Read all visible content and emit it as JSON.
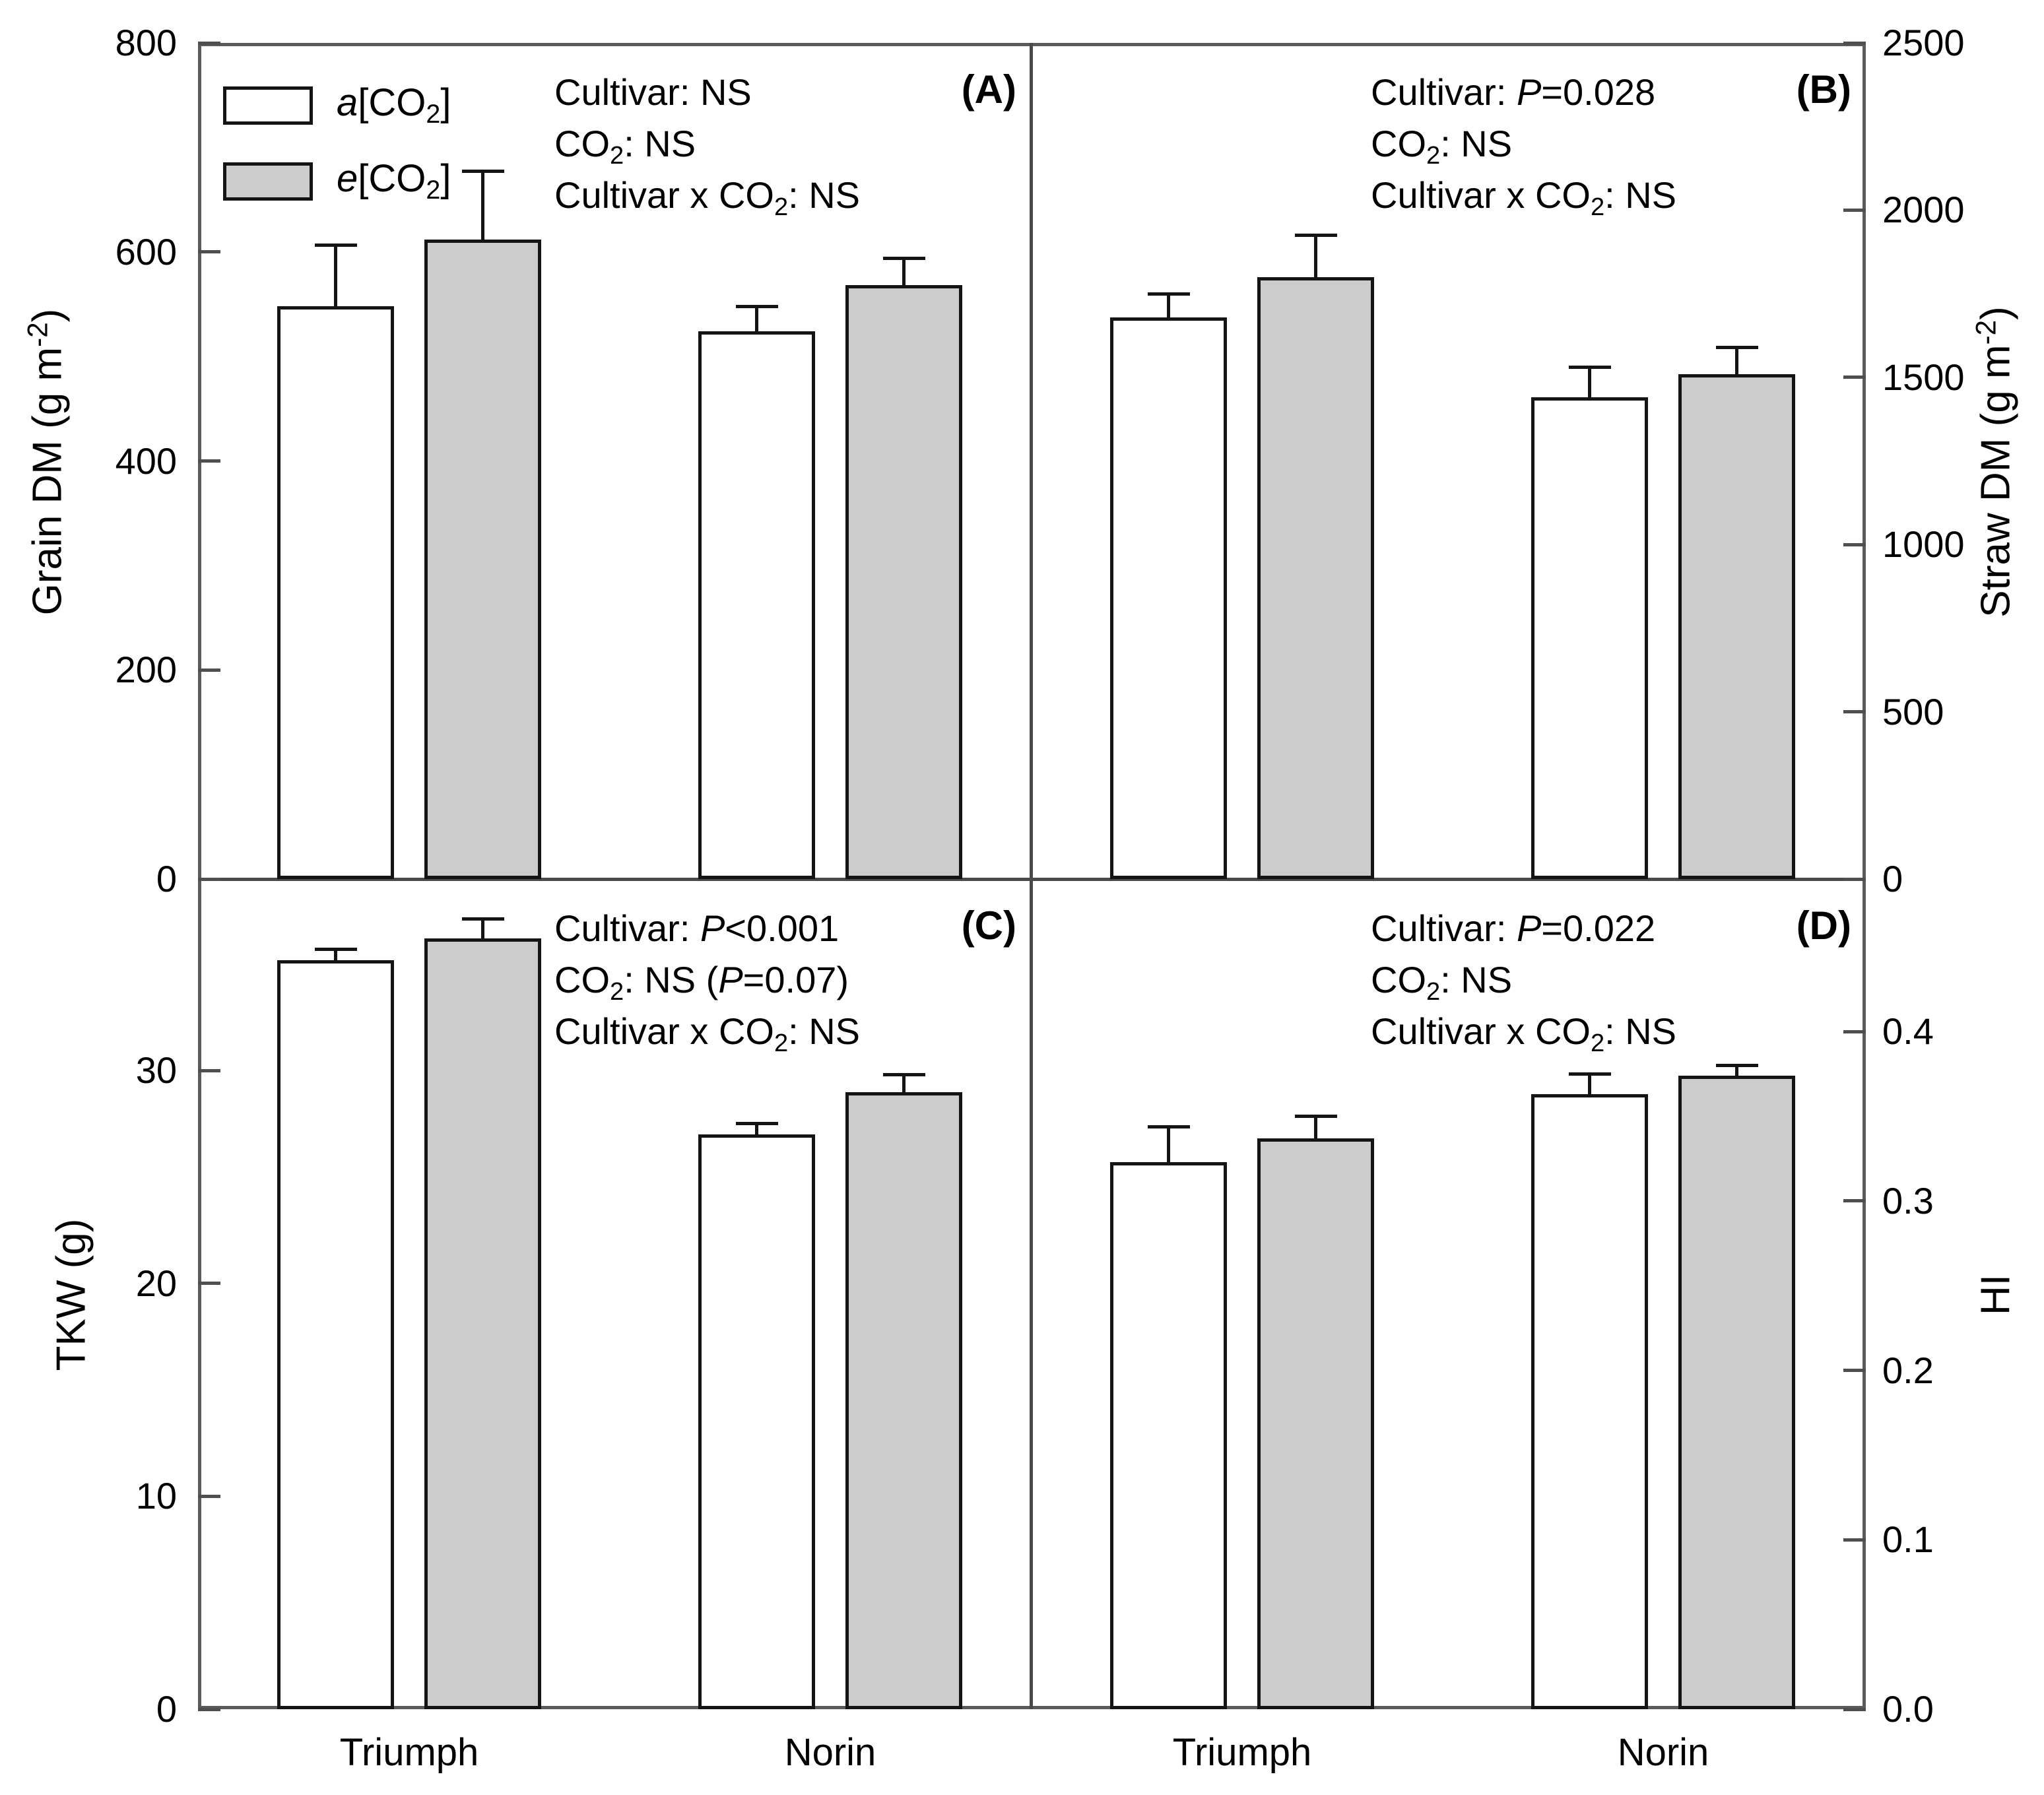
{
  "figure": {
    "kind": "four-panel grouped bar chart with error bars",
    "categories": [
      "Triumph",
      "Norin"
    ],
    "legend": {
      "items": [
        {
          "label": "a[CO₂]",
          "fill": "#ffffff"
        },
        {
          "label": "e[CO₂]",
          "fill": "#cccccc"
        }
      ]
    },
    "colors": {
      "ambient_bar": "#ffffff",
      "elevated_bar": "#cccccc",
      "bar_outline": "#141414",
      "frame": "#5b5b5b",
      "text": "#000000"
    }
  },
  "chart_data": {
    "type": "bar",
    "categories": [
      "Triumph",
      "Norin"
    ],
    "panels": [
      {
        "id": "A",
        "tag": "(A)",
        "ylabel": "Grain DM (g m⁻²)",
        "axis_side": "left",
        "ylim": [
          0,
          800
        ],
        "tick_values": [
          0,
          200,
          400,
          600,
          800
        ],
        "tick_labels": [
          "0",
          "200",
          "400",
          "600",
          "800"
        ],
        "series": [
          {
            "name": "a[CO₂]",
            "fill": "#ffffff",
            "values": [
              548,
              524
            ],
            "errors": [
              60,
              25
            ]
          },
          {
            "name": "e[CO₂]",
            "fill": "#cccccc",
            "values": [
              612,
              568
            ],
            "errors": [
              67,
              27
            ]
          }
        ],
        "annotations": [
          "Cultivar: NS",
          "CO₂: NS",
          "Cultivar x CO₂: NS"
        ],
        "show_legend": true
      },
      {
        "id": "B",
        "tag": "(B)",
        "ylabel": "Straw DM (g m⁻²)",
        "axis_side": "right",
        "ylim": [
          0,
          2500
        ],
        "tick_values": [
          0,
          500,
          1000,
          1500,
          2000,
          2500
        ],
        "tick_labels": [
          "0",
          "500",
          "1000",
          "1500",
          "2000",
          "2500"
        ],
        "series": [
          {
            "name": "a[CO₂]",
            "fill": "#ffffff",
            "values": [
              1680,
              1440
            ],
            "errors": [
              75,
              95
            ]
          },
          {
            "name": "e[CO₂]",
            "fill": "#cccccc",
            "values": [
              1800,
              1510
            ],
            "errors": [
              130,
              85
            ]
          }
        ],
        "annotations": [
          "Cultivar: P=0.028",
          "CO₂: NS",
          "Cultivar x CO₂: NS"
        ],
        "show_legend": false
      },
      {
        "id": "C",
        "tag": "(C)",
        "ylabel": "TKW (g)",
        "axis_side": "left",
        "ylim": [
          0,
          39
        ],
        "tick_values": [
          0,
          10,
          20,
          30
        ],
        "tick_labels": [
          "0",
          "10",
          "20",
          "30"
        ],
        "series": [
          {
            "name": "a[CO₂]",
            "fill": "#ffffff",
            "values": [
              35.2,
              27.0
            ],
            "errors": [
              0.6,
              0.6
            ]
          },
          {
            "name": "e[CO₂]",
            "fill": "#cccccc",
            "values": [
              36.2,
              29.0
            ],
            "errors": [
              1.0,
              0.9
            ]
          }
        ],
        "annotations": [
          "Cultivar: P<0.001",
          "CO₂: NS (P=0.07)",
          "Cultivar x CO₂: NS"
        ],
        "show_legend": false
      },
      {
        "id": "D",
        "tag": "(D)",
        "ylabel": "HI",
        "axis_side": "right",
        "ylim": [
          0,
          0.49
        ],
        "tick_values": [
          0,
          0.1,
          0.2,
          0.3,
          0.4
        ],
        "tick_labels": [
          "0.0",
          "0.1",
          "0.2",
          "0.3",
          "0.4"
        ],
        "series": [
          {
            "name": "a[CO₂]",
            "fill": "#ffffff",
            "values": [
              0.323,
              0.363
            ],
            "errors": [
              0.022,
              0.013
            ]
          },
          {
            "name": "e[CO₂]",
            "fill": "#cccccc",
            "values": [
              0.337,
              0.374
            ],
            "errors": [
              0.014,
              0.007
            ]
          }
        ],
        "annotations": [
          "Cultivar: P=0.022",
          "CO₂: NS",
          "Cultivar x CO₂: NS"
        ],
        "show_legend": false
      }
    ]
  }
}
